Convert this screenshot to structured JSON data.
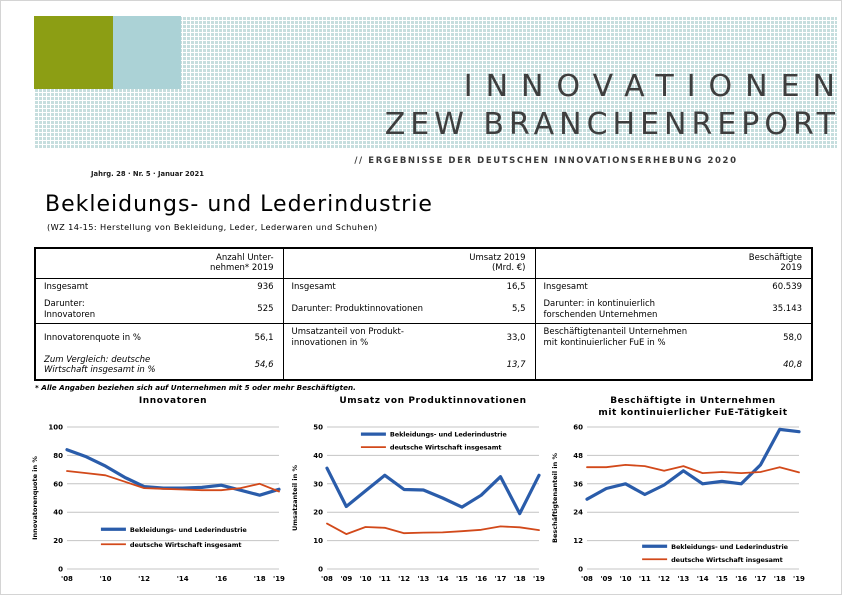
{
  "masthead": {
    "title_line1": "INNOVATIONEN",
    "title_line2": "ZEW BRANCHENREPORT",
    "subtitle": "// ERGEBNISSE DER DEUTSCHEN INNOVATIONSERHEBUNG 2020",
    "issue": "Jahrg. 28 · Nr. 5 · Januar 2021",
    "brand_colors": {
      "olive_green": "#8c9e14",
      "light_teal": "#abd2d6",
      "pattern_teal": "#c6dede",
      "title_gray": "#3e3e3e"
    }
  },
  "report": {
    "title": "Bekleidungs- und Lederindustrie",
    "subtitle": "(WZ 14-15: Herstellung von Bekleidung, Leder, Lederwaren und Schuhen)",
    "footnote": "* Alle Angaben beziehen sich auf Unternehmen mit 5 oder mehr Beschäftigten."
  },
  "table": {
    "col1": {
      "header": "Anzahl Unter-\nnehmen* 2019",
      "rows": [
        {
          "label": "Insgesamt",
          "value": "936"
        },
        {
          "label": "Darunter:\nInnovatoren",
          "value": "525"
        },
        {
          "label": "Innovatorenquote in %",
          "value": "56,1"
        },
        {
          "label": "Zum Vergleich: deutsche\nWirtschaft insgesamt in %",
          "value": "54,6"
        }
      ]
    },
    "col2": {
      "header": "Umsatz 2019\n(Mrd. €)",
      "rows": [
        {
          "label": "Insgesamt",
          "value": "16,5"
        },
        {
          "label": "Darunter: Produktinnovationen",
          "value": "5,5"
        },
        {
          "label": "Umsatzanteil von Produkt-\ninnovationen in %",
          "value": "33,0"
        },
        {
          "label": "",
          "value": "13,7"
        }
      ]
    },
    "col3": {
      "header": "Beschäftigte\n2019",
      "rows": [
        {
          "label": "Insgesamt",
          "value": "60.539"
        },
        {
          "label": "Darunter: in kontinuierlich\nforschenden Unternehmen",
          "value": "35.143"
        },
        {
          "label": "Beschäftigtenanteil Unternehmen\nmit kontinuierlicher FuE in %",
          "value": "58,0"
        },
        {
          "label": "",
          "value": "40,8"
        }
      ]
    }
  },
  "chart_data": [
    {
      "type": "line",
      "title": "Innovatoren",
      "ylabel": "Innovatorenquote in %",
      "ylim": [
        0,
        100
      ],
      "yticks": [
        0,
        20,
        40,
        60,
        80,
        100
      ],
      "categories": [
        "'08",
        "'09",
        "'10",
        "'11",
        "'12",
        "'13",
        "'14",
        "'15",
        "'16",
        "'17",
        "'18",
        "'19"
      ],
      "xticklabels": [
        "'08",
        "",
        "'10",
        "",
        "'12",
        "",
        "'14",
        "",
        "'16",
        "",
        "'18",
        "'19"
      ],
      "grid": true,
      "legend": {
        "x": 0.16,
        "y": 0.72,
        "dy": 15
      },
      "series": [
        {
          "name": "Bekleidungs- und Lederindustrie",
          "color": "#2a5caa",
          "width": 3.2,
          "values": [
            84,
            79,
            72.5,
            64.5,
            58,
            57,
            57,
            57.5,
            59,
            55.5,
            52,
            56.1
          ]
        },
        {
          "name": "deutsche Wirtschaft insgesamt",
          "color": "#d2491a",
          "width": 1.8,
          "values": [
            69,
            67.5,
            66,
            61.5,
            57,
            56.5,
            56,
            55.5,
            55.5,
            57,
            60,
            54.6
          ]
        }
      ]
    },
    {
      "type": "line",
      "title": "Umsatz von Produktinnovationen",
      "ylabel": "Umsatzanteil in %",
      "ylim": [
        0,
        50
      ],
      "yticks": [
        0,
        10,
        20,
        30,
        40,
        50
      ],
      "categories": [
        "'08",
        "'09",
        "'10",
        "'11",
        "'12",
        "'13",
        "'14",
        "'15",
        "'16",
        "'17",
        "'18",
        "'19"
      ],
      "xticklabels": [
        "'08",
        "'09",
        "'10",
        "'11",
        "'12",
        "'13",
        "'14",
        "'15",
        "'16",
        "'17",
        "'18",
        "'19"
      ],
      "grid": true,
      "legend": {
        "x": 0.16,
        "y": 0.05,
        "dy": 13
      },
      "series": [
        {
          "name": "Bekleidungs- und Lederindustrie",
          "color": "#2a5caa",
          "width": 3.2,
          "values": [
            35.5,
            22,
            27.5,
            33,
            28,
            27.8,
            25,
            21.8,
            26,
            32.5,
            19.5,
            33.0
          ]
        },
        {
          "name": "deutsche Wirtschaft insgesamt",
          "color": "#d2491a",
          "width": 1.8,
          "values": [
            16,
            12.3,
            14.8,
            14.5,
            12.6,
            12.8,
            12.9,
            13.3,
            13.8,
            15,
            14.7,
            13.7
          ]
        }
      ]
    },
    {
      "type": "line",
      "title": "Beschäftigte in Unternehmen\nmit kontinuierlicher FuE-Tätigkeit",
      "ylabel": "Beschäftigtenanteil in %",
      "ylim": [
        0,
        60
      ],
      "yticks": [
        0,
        12,
        24,
        36,
        48,
        60
      ],
      "categories": [
        "'08",
        "'09",
        "'10",
        "'11",
        "'12",
        "'13",
        "'14",
        "'15",
        "'16",
        "'17",
        "'18",
        "'19"
      ],
      "xticklabels": [
        "'08",
        "'09",
        "'10",
        "'11",
        "'12",
        "'13",
        "'14",
        "'15",
        "'16",
        "'17",
        "'18",
        "'19"
      ],
      "grid": true,
      "legend": {
        "x": 0.26,
        "y": 0.84,
        "dy": 13
      },
      "series": [
        {
          "name": "Bekleidungs- und Lederindustrie",
          "color": "#2a5caa",
          "width": 3.2,
          "values": [
            29.5,
            34,
            36,
            31.5,
            35.5,
            41.5,
            36,
            37,
            36,
            44,
            59,
            58.0
          ]
        },
        {
          "name": "deutsche Wirtschaft insgesamt",
          "color": "#d2491a",
          "width": 1.8,
          "values": [
            43,
            43,
            44,
            43.5,
            41.5,
            43.5,
            40.5,
            41,
            40.5,
            41,
            43,
            40.8
          ]
        }
      ]
    }
  ]
}
